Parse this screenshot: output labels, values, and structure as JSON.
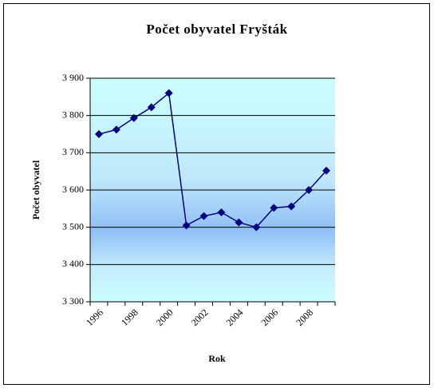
{
  "chart_data": {
    "type": "line",
    "title": "Počet obyvatel Fryšták",
    "x_label": "Rok",
    "y_label": "Počet obyvatel",
    "categories": [
      "1996",
      null,
      "1998",
      null,
      "2000",
      null,
      "2002",
      null,
      "2004",
      null,
      "2006",
      null,
      "2008",
      null
    ],
    "series": [
      {
        "name": "Počet obyvatel",
        "color": "#000080",
        "values": [
          3750,
          3762,
          3793,
          3822,
          3860,
          3505,
          3530,
          3540,
          3513,
          3500,
          3552,
          3556,
          3600,
          3652
        ]
      }
    ],
    "ylim": [
      3300,
      3900
    ],
    "yticks": [
      {
        "value": 3300,
        "label": "3 300"
      },
      {
        "value": 3400,
        "label": "3 400"
      },
      {
        "value": 3500,
        "label": "3 500"
      },
      {
        "value": 3600,
        "label": "3 600"
      },
      {
        "value": 3700,
        "label": "3 700"
      },
      {
        "value": 3800,
        "label": "3 800"
      },
      {
        "value": 3900,
        "label": "3 900"
      }
    ],
    "grid": true
  }
}
